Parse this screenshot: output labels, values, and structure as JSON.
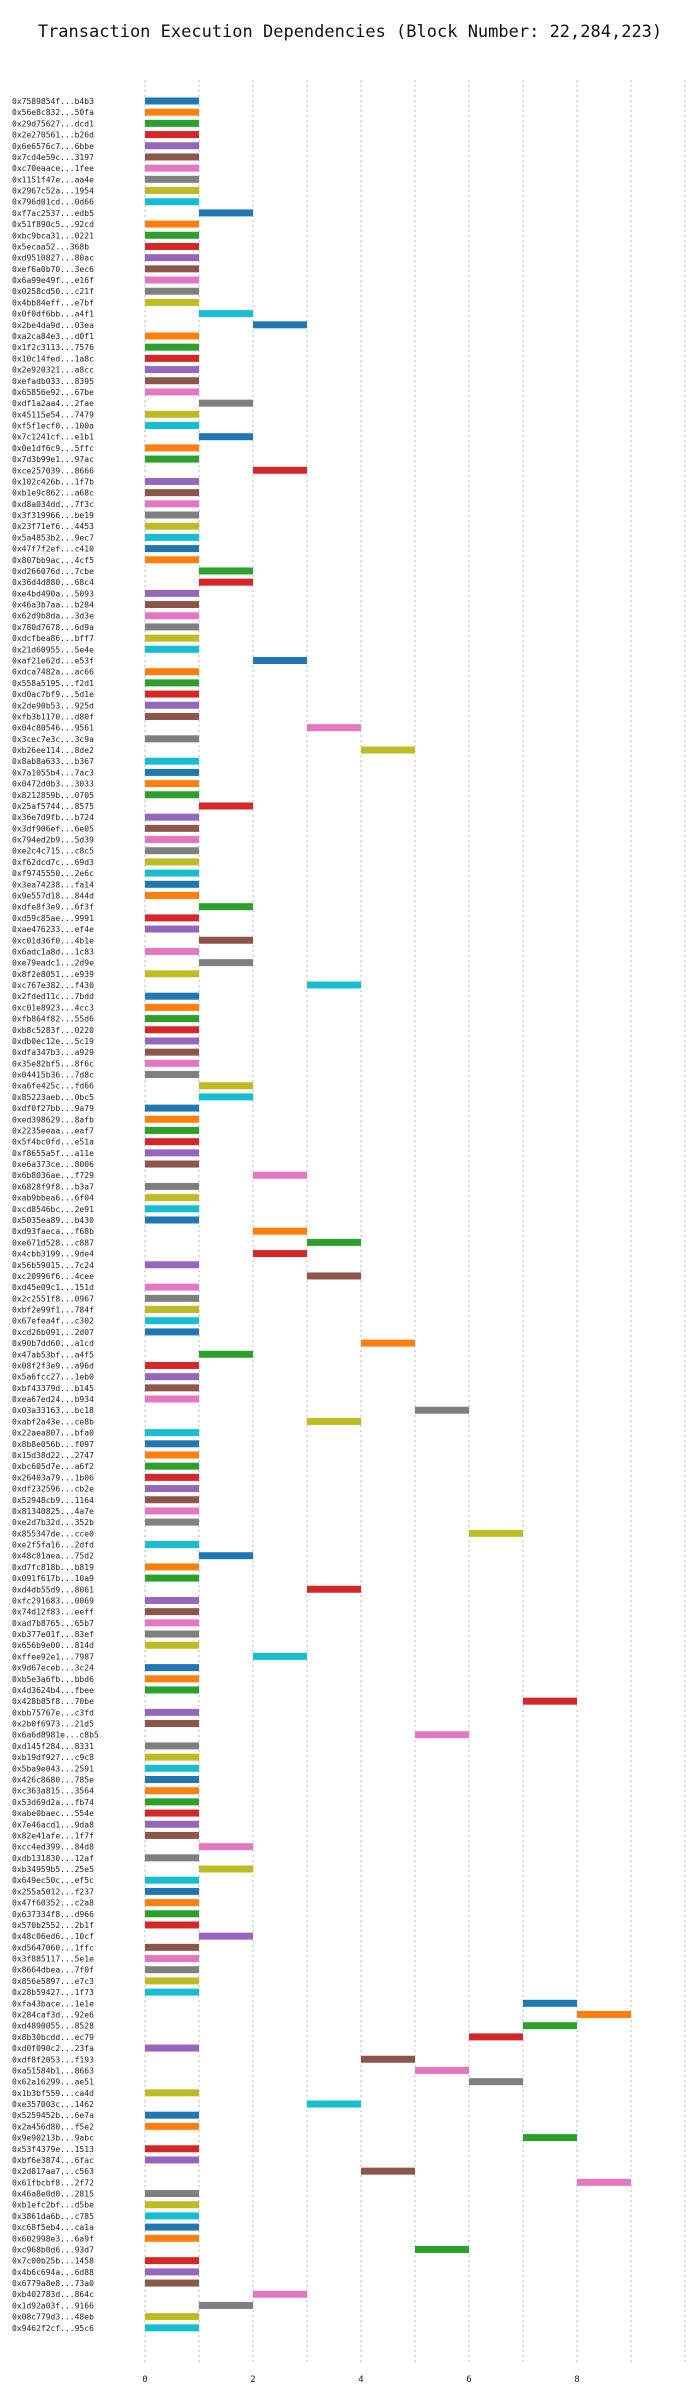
{
  "chart_data": {
    "type": "bar",
    "orientation": "horizontal",
    "title": "Transaction Execution Dependencies (Block Number: 22,284,223)",
    "xlabel": "",
    "ylabel": "",
    "xlim": [
      0,
      10
    ],
    "xticks": [
      0,
      2,
      4,
      6,
      8
    ],
    "xtick_labels": [
      "0",
      "2",
      "4",
      "6",
      "8"
    ],
    "grid": true,
    "palette": [
      "#1f77b4",
      "#ff7f0e",
      "#2ca02c",
      "#d62728",
      "#9467bd",
      "#8c564b",
      "#e377c2",
      "#7f7f7f",
      "#bcbd22",
      "#17becf"
    ],
    "bars": [
      {
        "label": "0x7589854f...b4b3",
        "start": 0,
        "end": 1
      },
      {
        "label": "0x56e8c832...50fa",
        "start": 0,
        "end": 1
      },
      {
        "label": "0x29d75627...dcd1",
        "start": 0,
        "end": 1
      },
      {
        "label": "0x2e270561...b26d",
        "start": 0,
        "end": 1
      },
      {
        "label": "0x6e6576c7...6bbe",
        "start": 0,
        "end": 1
      },
      {
        "label": "0x7cd4e59c...3197",
        "start": 0,
        "end": 1
      },
      {
        "label": "0xc70eaace...1fee",
        "start": 0,
        "end": 1
      },
      {
        "label": "0x1151f47e...aa4e",
        "start": 0,
        "end": 1
      },
      {
        "label": "0x2967c52a...1954",
        "start": 0,
        "end": 1
      },
      {
        "label": "0x796d01cd...0d66",
        "start": 0,
        "end": 1
      },
      {
        "label": "0xf7ac2537...edb5",
        "start": 1,
        "end": 2
      },
      {
        "label": "0x51f890c5...92cd",
        "start": 0,
        "end": 1
      },
      {
        "label": "0xbc9bca31...0221",
        "start": 0,
        "end": 1
      },
      {
        "label": "0x5ecaa52...368b",
        "start": 0,
        "end": 1
      },
      {
        "label": "0xd9510827...80ac",
        "start": 0,
        "end": 1
      },
      {
        "label": "0xef6a0b70...3ec6",
        "start": 0,
        "end": 1
      },
      {
        "label": "0x6a99e49f...e16f",
        "start": 0,
        "end": 1
      },
      {
        "label": "0x0258cd50...c21f",
        "start": 0,
        "end": 1
      },
      {
        "label": "0x4bb84eff...e7bf",
        "start": 0,
        "end": 1
      },
      {
        "label": "0x0f0df6bb...a4f1",
        "start": 1,
        "end": 2
      },
      {
        "label": "0x2be4da9d...03ea",
        "start": 2,
        "end": 3
      },
      {
        "label": "0xa2ca84e3...d0f1",
        "start": 0,
        "end": 1
      },
      {
        "label": "0x1f2c3113...7576",
        "start": 0,
        "end": 1
      },
      {
        "label": "0x10c14fed...1a8c",
        "start": 0,
        "end": 1
      },
      {
        "label": "0x2e920321...a8cc",
        "start": 0,
        "end": 1
      },
      {
        "label": "0xefadb033...8395",
        "start": 0,
        "end": 1
      },
      {
        "label": "0x65856e92...67be",
        "start": 0,
        "end": 1
      },
      {
        "label": "0xdf1a2aa4...2fae",
        "start": 1,
        "end": 2
      },
      {
        "label": "0x45115e54...7479",
        "start": 0,
        "end": 1
      },
      {
        "label": "0xf5f1ecf0...100a",
        "start": 0,
        "end": 1
      },
      {
        "label": "0x7c1241cf...e1b1",
        "start": 1,
        "end": 2
      },
      {
        "label": "0x0e1df6c9...5ffc",
        "start": 0,
        "end": 1
      },
      {
        "label": "0x7d3b99e1...97ac",
        "start": 0,
        "end": 1
      },
      {
        "label": "0xce257039...8666",
        "start": 2,
        "end": 3
      },
      {
        "label": "0x102c426b...1f7b",
        "start": 0,
        "end": 1
      },
      {
        "label": "0xb1e9c862...a68c",
        "start": 0,
        "end": 1
      },
      {
        "label": "0xd8a034dd...7f3c",
        "start": 0,
        "end": 1
      },
      {
        "label": "0x3f319966...be19",
        "start": 0,
        "end": 1
      },
      {
        "label": "0x23f71ef6...4453",
        "start": 0,
        "end": 1
      },
      {
        "label": "0x5a4853b2...9ec7",
        "start": 0,
        "end": 1
      },
      {
        "label": "0x47f7f2ef...c410",
        "start": 0,
        "end": 1
      },
      {
        "label": "0x807bb9ac...4cf5",
        "start": 0,
        "end": 1
      },
      {
        "label": "0xd266076d...7cbe",
        "start": 1,
        "end": 2
      },
      {
        "label": "0x36d4d880...68c4",
        "start": 1,
        "end": 2
      },
      {
        "label": "0xe4bd490a...5093",
        "start": 0,
        "end": 1
      },
      {
        "label": "0x46a3b7aa...b284",
        "start": 0,
        "end": 1
      },
      {
        "label": "0x62d9b8da...3d3e",
        "start": 0,
        "end": 1
      },
      {
        "label": "0x780d7678...6d9a",
        "start": 0,
        "end": 1
      },
      {
        "label": "0xdcfbea86...bff7",
        "start": 0,
        "end": 1
      },
      {
        "label": "0x21d60955...5e4e",
        "start": 0,
        "end": 1
      },
      {
        "label": "0xaf21e62d...e53f",
        "start": 2,
        "end": 3
      },
      {
        "label": "0xdca7482a...ac66",
        "start": 0,
        "end": 1
      },
      {
        "label": "0x558a5195...f2d1",
        "start": 0,
        "end": 1
      },
      {
        "label": "0xd0ac7bf9...5d1e",
        "start": 0,
        "end": 1
      },
      {
        "label": "0x2de90b53...925d",
        "start": 0,
        "end": 1
      },
      {
        "label": "0xfb3b1170...d80f",
        "start": 0,
        "end": 1
      },
      {
        "label": "0x04c80546...9561",
        "start": 3,
        "end": 4
      },
      {
        "label": "0x3cec7e3c...3c9a",
        "start": 0,
        "end": 1
      },
      {
        "label": "0xb26ee114...8de2",
        "start": 4,
        "end": 5
      },
      {
        "label": "0x8ab8a633...b367",
        "start": 0,
        "end": 1
      },
      {
        "label": "0x7a1055b4...7ac3",
        "start": 0,
        "end": 1
      },
      {
        "label": "0x0472d0b3...3033",
        "start": 0,
        "end": 1
      },
      {
        "label": "0x8212859b...0705",
        "start": 0,
        "end": 1
      },
      {
        "label": "0x25af5744...8575",
        "start": 1,
        "end": 2
      },
      {
        "label": "0x36e7d9fb...b724",
        "start": 0,
        "end": 1
      },
      {
        "label": "0x3df906ef...6e05",
        "start": 0,
        "end": 1
      },
      {
        "label": "0x794ed2b9...5d39",
        "start": 0,
        "end": 1
      },
      {
        "label": "0xe2c4c715...c8c5",
        "start": 0,
        "end": 1
      },
      {
        "label": "0xf62dcd7c...69d3",
        "start": 0,
        "end": 1
      },
      {
        "label": "0xf9745550...2e6c",
        "start": 0,
        "end": 1
      },
      {
        "label": "0x3ea74238...fa14",
        "start": 0,
        "end": 1
      },
      {
        "label": "0x9e557d18...844d",
        "start": 0,
        "end": 1
      },
      {
        "label": "0xdfe8f3e9...6f3f",
        "start": 1,
        "end": 2
      },
      {
        "label": "0xd59c85ae...9991",
        "start": 0,
        "end": 1
      },
      {
        "label": "0xae476233...ef4e",
        "start": 0,
        "end": 1
      },
      {
        "label": "0xc01d36f0...4b1e",
        "start": 1,
        "end": 2
      },
      {
        "label": "0x6adc1a8d...1c83",
        "start": 0,
        "end": 1
      },
      {
        "label": "0xe79eadc1...2d9e",
        "start": 1,
        "end": 2
      },
      {
        "label": "0x8f2e8051...e939",
        "start": 0,
        "end": 1
      },
      {
        "label": "0xc767e382...f430",
        "start": 3,
        "end": 4
      },
      {
        "label": "0x2fded11c...7bdd",
        "start": 0,
        "end": 1
      },
      {
        "label": "0xc01e8923...4cc3",
        "start": 0,
        "end": 1
      },
      {
        "label": "0xfb864f82...55d6",
        "start": 0,
        "end": 1
      },
      {
        "label": "0xb8c5283f...0220",
        "start": 0,
        "end": 1
      },
      {
        "label": "0xdb0ec12e...5c19",
        "start": 0,
        "end": 1
      },
      {
        "label": "0xdfa347b3...a929",
        "start": 0,
        "end": 1
      },
      {
        "label": "0x35e82bf5...8f6c",
        "start": 0,
        "end": 1
      },
      {
        "label": "0x04415b36...7d8c",
        "start": 0,
        "end": 1
      },
      {
        "label": "0xa6fe425c...fd66",
        "start": 1,
        "end": 2
      },
      {
        "label": "0x85223aeb...0bc5",
        "start": 1,
        "end": 2
      },
      {
        "label": "0xdf0f27bb...9a79",
        "start": 0,
        "end": 1
      },
      {
        "label": "0xed398629...8afb",
        "start": 0,
        "end": 1
      },
      {
        "label": "0x2235eeaa...eaf7",
        "start": 0,
        "end": 1
      },
      {
        "label": "0x5f4bc0fd...e51a",
        "start": 0,
        "end": 1
      },
      {
        "label": "0xf8655a5f...a11e",
        "start": 0,
        "end": 1
      },
      {
        "label": "0xe6a373ce...8006",
        "start": 0,
        "end": 1
      },
      {
        "label": "0x6b8036ae...f729",
        "start": 2,
        "end": 3
      },
      {
        "label": "0x6828f9f8...b3a7",
        "start": 0,
        "end": 1
      },
      {
        "label": "0xab9bbea6...6f04",
        "start": 0,
        "end": 1
      },
      {
        "label": "0xcd8546bc...2e91",
        "start": 0,
        "end": 1
      },
      {
        "label": "0x5035ea89...b430",
        "start": 0,
        "end": 1
      },
      {
        "label": "0xd93faeca...f68b",
        "start": 2,
        "end": 3
      },
      {
        "label": "0xe671d528...c887",
        "start": 3,
        "end": 4
      },
      {
        "label": "0x4cbb3199...9de4",
        "start": 2,
        "end": 3
      },
      {
        "label": "0x56b59015...7c24",
        "start": 0,
        "end": 1
      },
      {
        "label": "0xc20996f6...4cee",
        "start": 3,
        "end": 4
      },
      {
        "label": "0xd45e09c1...151d",
        "start": 0,
        "end": 1
      },
      {
        "label": "0x2c2551f8...0967",
        "start": 0,
        "end": 1
      },
      {
        "label": "0xbf2e99f1...784f",
        "start": 0,
        "end": 1
      },
      {
        "label": "0x67efea4f...c302",
        "start": 0,
        "end": 1
      },
      {
        "label": "0xcd26b091...2d07",
        "start": 0,
        "end": 1
      },
      {
        "label": "0x90b7dd60...a1cd",
        "start": 4,
        "end": 5
      },
      {
        "label": "0x47ab53bf...a4f5",
        "start": 1,
        "end": 2
      },
      {
        "label": "0x08f2f3e9...a96d",
        "start": 0,
        "end": 1
      },
      {
        "label": "0x5a6fcc27...1eb0",
        "start": 0,
        "end": 1
      },
      {
        "label": "0xbf43379d...b145",
        "start": 0,
        "end": 1
      },
      {
        "label": "0xea67ed24...b934",
        "start": 0,
        "end": 1
      },
      {
        "label": "0x03a33163...bc18",
        "start": 5,
        "end": 6
      },
      {
        "label": "0xabf2a43e...ce8b",
        "start": 3,
        "end": 4
      },
      {
        "label": "0x22aea807...bfa0",
        "start": 0,
        "end": 1
      },
      {
        "label": "0x8b8e056b...f097",
        "start": 0,
        "end": 1
      },
      {
        "label": "0x15d38d22...2747",
        "start": 0,
        "end": 1
      },
      {
        "label": "0xbc605d7e...a6f2",
        "start": 0,
        "end": 1
      },
      {
        "label": "0x26403a79...1b06",
        "start": 0,
        "end": 1
      },
      {
        "label": "0xdf232596...cb2e",
        "start": 0,
        "end": 1
      },
      {
        "label": "0x52948cb9...1164",
        "start": 0,
        "end": 1
      },
      {
        "label": "0x81340825...4a7e",
        "start": 0,
        "end": 1
      },
      {
        "label": "0xe2d7b32d...352b",
        "start": 0,
        "end": 1
      },
      {
        "label": "0x855347de...cce0",
        "start": 6,
        "end": 7
      },
      {
        "label": "0xe2f5fa16...2dfd",
        "start": 0,
        "end": 1
      },
      {
        "label": "0x48c81aea...75d2",
        "start": 1,
        "end": 2
      },
      {
        "label": "0xd7fc818b...b819",
        "start": 0,
        "end": 1
      },
      {
        "label": "0x091f617b...10a9",
        "start": 0,
        "end": 1
      },
      {
        "label": "0xd4db55d9...8061",
        "start": 3,
        "end": 4
      },
      {
        "label": "0xfc291683...0069",
        "start": 0,
        "end": 1
      },
      {
        "label": "0x74d12f83...eeff",
        "start": 0,
        "end": 1
      },
      {
        "label": "0xad7b8765...65b7",
        "start": 0,
        "end": 1
      },
      {
        "label": "0xb377e01f...83ef",
        "start": 0,
        "end": 1
      },
      {
        "label": "0x656b9e00...814d",
        "start": 0,
        "end": 1
      },
      {
        "label": "0xffee92e1...7987",
        "start": 2,
        "end": 3
      },
      {
        "label": "0x9d67eceb...3c24",
        "start": 0,
        "end": 1
      },
      {
        "label": "0xb5e3a6fb...bbd6",
        "start": 0,
        "end": 1
      },
      {
        "label": "0x4d3624b4...fbee",
        "start": 0,
        "end": 1
      },
      {
        "label": "0x428b85f8...70be",
        "start": 7,
        "end": 8
      },
      {
        "label": "0xbb75767e...c3fd",
        "start": 0,
        "end": 1
      },
      {
        "label": "0x2b0f6973...21d5",
        "start": 0,
        "end": 1
      },
      {
        "label": "0x6a6d8981e...c8b5",
        "start": 5,
        "end": 6
      },
      {
        "label": "0xd145f284...8331",
        "start": 0,
        "end": 1
      },
      {
        "label": "0xb19df927...c9c8",
        "start": 0,
        "end": 1
      },
      {
        "label": "0x5ba9e043...2591",
        "start": 0,
        "end": 1
      },
      {
        "label": "0x426c8680...785e",
        "start": 0,
        "end": 1
      },
      {
        "label": "0xc363a815...3564",
        "start": 0,
        "end": 1
      },
      {
        "label": "0x53d69d2a...fb74",
        "start": 0,
        "end": 1
      },
      {
        "label": "0xabe0baec...554e",
        "start": 0,
        "end": 1
      },
      {
        "label": "0x7e46acd1...9da8",
        "start": 0,
        "end": 1
      },
      {
        "label": "0x82e41afe...1f7f",
        "start": 0,
        "end": 1
      },
      {
        "label": "0xcc4ed399...84d8",
        "start": 1,
        "end": 2
      },
      {
        "label": "0xdb131830...12af",
        "start": 0,
        "end": 1
      },
      {
        "label": "0xb34959b5...25e5",
        "start": 1,
        "end": 2
      },
      {
        "label": "0x649ec50c...ef5c",
        "start": 0,
        "end": 1
      },
      {
        "label": "0x255a5012...f237",
        "start": 0,
        "end": 1
      },
      {
        "label": "0x47f60352...c2a8",
        "start": 0,
        "end": 1
      },
      {
        "label": "0x637334f8...d966",
        "start": 0,
        "end": 1
      },
      {
        "label": "0x570b2552...2b1f",
        "start": 0,
        "end": 1
      },
      {
        "label": "0x48c06ed6...10cf",
        "start": 1,
        "end": 2
      },
      {
        "label": "0xd5647060...1ffc",
        "start": 0,
        "end": 1
      },
      {
        "label": "0x3f885117...5e1e",
        "start": 0,
        "end": 1
      },
      {
        "label": "0x8664dbea...7f0f",
        "start": 0,
        "end": 1
      },
      {
        "label": "0x856e5897...e7c3",
        "start": 0,
        "end": 1
      },
      {
        "label": "0x28b59427...1f73",
        "start": 0,
        "end": 1
      },
      {
        "label": "0xfa43bace...1e1e",
        "start": 7,
        "end": 8
      },
      {
        "label": "0x284caf3d...92e6",
        "start": 8,
        "end": 9
      },
      {
        "label": "0xd4890055...8528",
        "start": 7,
        "end": 8
      },
      {
        "label": "0x8b30bcdd...ec79",
        "start": 6,
        "end": 7
      },
      {
        "label": "0xd0f090c2...23fa",
        "start": 0,
        "end": 1
      },
      {
        "label": "0xdf8f2053...f193",
        "start": 4,
        "end": 5
      },
      {
        "label": "0xa51584b1...8663",
        "start": 5,
        "end": 6
      },
      {
        "label": "0x62a16299...ae51",
        "start": 6,
        "end": 7
      },
      {
        "label": "0x1b3bf559...ca4d",
        "start": 0,
        "end": 1
      },
      {
        "label": "0xe357003c...1462",
        "start": 3,
        "end": 4
      },
      {
        "label": "0x5259452b...6e7a",
        "start": 0,
        "end": 1
      },
      {
        "label": "0x2a456d80...f5e2",
        "start": 0,
        "end": 1
      },
      {
        "label": "0x9e90213b...9abc",
        "start": 7,
        "end": 8
      },
      {
        "label": "0x53f4379e...1513",
        "start": 0,
        "end": 1
      },
      {
        "label": "0xbf6e3874...6fac",
        "start": 0,
        "end": 1
      },
      {
        "label": "0x2d817aa7...c563",
        "start": 4,
        "end": 5
      },
      {
        "label": "0x61fbcbf8...2f72",
        "start": 8,
        "end": 9
      },
      {
        "label": "0x46a8e0d0...2815",
        "start": 0,
        "end": 1
      },
      {
        "label": "0xb1efc2bf...d5be",
        "start": 0,
        "end": 1
      },
      {
        "label": "0x3861da6b...c785",
        "start": 0,
        "end": 1
      },
      {
        "label": "0xc68f5eb4...ca1a",
        "start": 0,
        "end": 1
      },
      {
        "label": "0x602998e3...6a9f",
        "start": 0,
        "end": 1
      },
      {
        "label": "0xc968b0d6...93d7",
        "start": 5,
        "end": 6
      },
      {
        "label": "0x7c00b25b...1458",
        "start": 0,
        "end": 1
      },
      {
        "label": "0x4b6c694a...6d88",
        "start": 0,
        "end": 1
      },
      {
        "label": "0x6779a8e8...73a0",
        "start": 0,
        "end": 1
      },
      {
        "label": "0xb402783d...864c",
        "start": 2,
        "end": 3
      },
      {
        "label": "0x1d92a03f...9166",
        "start": 1,
        "end": 2
      },
      {
        "label": "0x08c779d3...48eb",
        "start": 0,
        "end": 1
      },
      {
        "label": "0x9462f2cf...95c6",
        "start": 0,
        "end": 1
      }
    ]
  }
}
